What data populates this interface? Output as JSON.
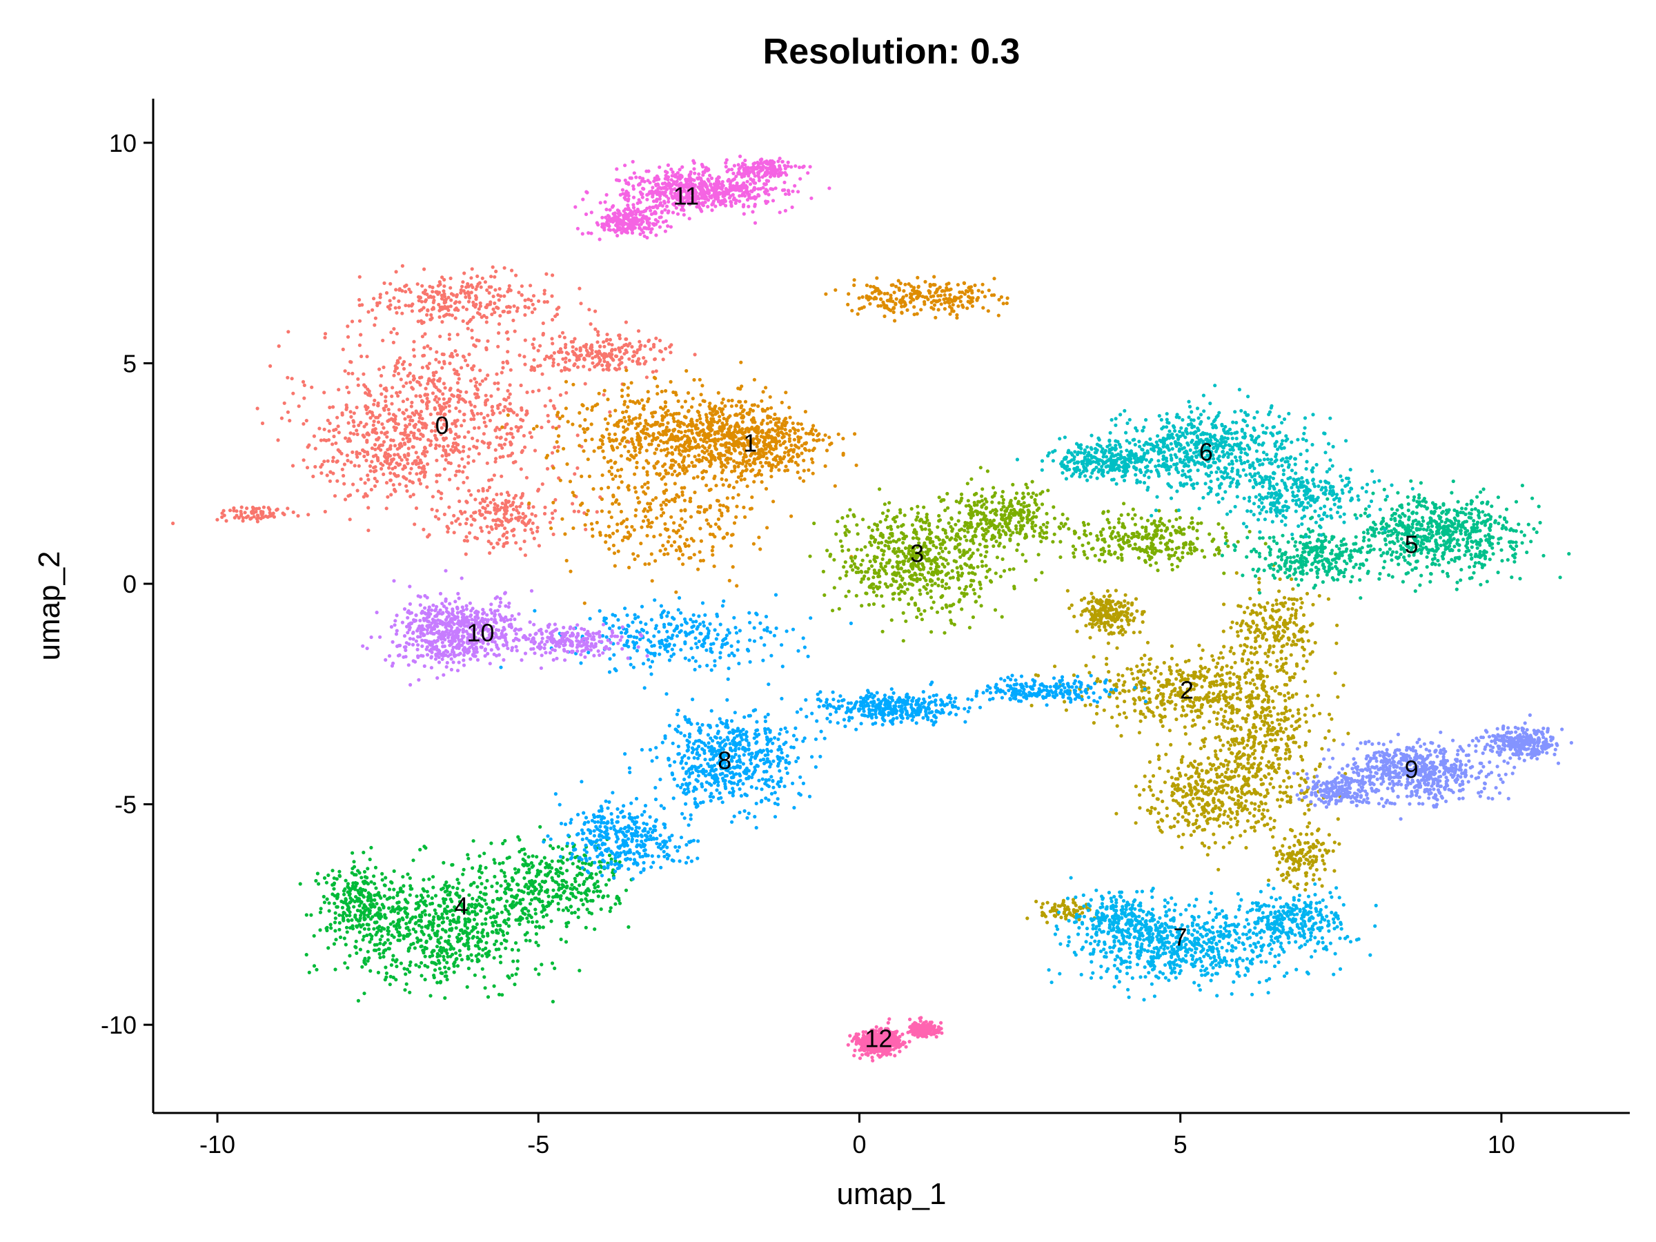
{
  "chart_data": {
    "type": "scatter",
    "title": "Resolution: 0.3",
    "xlabel": "umap_1",
    "ylabel": "umap_2",
    "xlim": [
      -11,
      12
    ],
    "ylim": [
      -12.0,
      11.0
    ],
    "x_ticks": [
      -10,
      -5,
      0,
      5,
      10
    ],
    "x_tick_labels": [
      "-10",
      "-5",
      "0",
      "5",
      "10"
    ],
    "y_ticks": [
      -10,
      -5,
      0,
      5,
      10
    ],
    "y_tick_labels": [
      "-10",
      "-5",
      "0",
      "5",
      "10"
    ],
    "grid": false,
    "legend": "none",
    "clusters": [
      {
        "label": "0",
        "color": "#F8766D",
        "label_pos": [
          -6.5,
          3.6
        ],
        "blobs": [
          [
            -6.5,
            4.0,
            1.8,
            1.6,
            0.9
          ],
          [
            -7.3,
            3.0,
            1.2,
            1.0,
            0.4
          ],
          [
            -6.2,
            6.4,
            1.3,
            0.6,
            0.4
          ],
          [
            -4.0,
            5.2,
            1.0,
            0.4,
            0.3
          ],
          [
            -9.4,
            1.6,
            0.6,
            0.15,
            0.1
          ],
          [
            -5.6,
            1.5,
            0.9,
            0.6,
            0.3
          ]
        ]
      },
      {
        "label": "1",
        "color": "#DE8C00",
        "label_pos": [
          -1.7,
          3.2
        ],
        "blobs": [
          [
            -1.8,
            3.2,
            1.2,
            0.8,
            0.9
          ],
          [
            -3.2,
            3.5,
            1.3,
            1.0,
            0.6
          ],
          [
            -3.0,
            1.5,
            1.4,
            1.2,
            0.4
          ],
          [
            1.0,
            6.5,
            1.0,
            0.35,
            0.35
          ]
        ]
      },
      {
        "label": "2",
        "color": "#B79F00",
        "label_pos": [
          5.1,
          -2.4
        ],
        "blobs": [
          [
            5.1,
            -2.4,
            1.5,
            0.7,
            0.6
          ],
          [
            6.3,
            -3.5,
            0.9,
            1.6,
            0.6
          ],
          [
            5.4,
            -4.8,
            0.9,
            0.9,
            0.5
          ],
          [
            3.9,
            -0.7,
            0.4,
            0.4,
            0.3
          ],
          [
            6.5,
            -1.0,
            0.6,
            0.9,
            0.3
          ],
          [
            6.9,
            -6.2,
            0.4,
            0.6,
            0.2
          ],
          [
            3.2,
            -7.4,
            0.4,
            0.2,
            0.1
          ]
        ]
      },
      {
        "label": "3",
        "color": "#7CAE00",
        "label_pos": [
          0.9,
          0.7
        ],
        "blobs": [
          [
            0.9,
            0.5,
            1.2,
            1.1,
            0.9
          ],
          [
            2.2,
            1.5,
            0.8,
            0.6,
            0.4
          ],
          [
            4.5,
            1.0,
            1.2,
            0.5,
            0.4
          ]
        ]
      },
      {
        "label": "4",
        "color": "#00BA38",
        "label_pos": [
          -6.2,
          -7.3
        ],
        "blobs": [
          [
            -6.6,
            -7.8,
            1.5,
            1.1,
            1.0
          ],
          [
            -4.8,
            -6.8,
            1.0,
            0.8,
            0.5
          ],
          [
            -7.8,
            -7.2,
            0.6,
            0.8,
            0.3
          ]
        ]
      },
      {
        "label": "5",
        "color": "#00C08B",
        "label_pos": [
          8.6,
          0.9
        ],
        "blobs": [
          [
            9.0,
            1.1,
            1.2,
            0.8,
            0.9
          ],
          [
            7.0,
            0.6,
            1.0,
            0.5,
            0.4
          ]
        ]
      },
      {
        "label": "6",
        "color": "#00BFC4",
        "label_pos": [
          5.4,
          3.0
        ],
        "blobs": [
          [
            5.4,
            3.0,
            1.4,
            0.9,
            0.9
          ],
          [
            3.8,
            2.8,
            0.8,
            0.4,
            0.4
          ],
          [
            6.8,
            2.0,
            1.0,
            0.6,
            0.4
          ]
        ]
      },
      {
        "label": "7",
        "color": "#00B4F0",
        "label_pos": [
          5.0,
          -8.0
        ],
        "blobs": [
          [
            5.0,
            -8.2,
            1.5,
            0.8,
            0.9
          ],
          [
            6.8,
            -7.7,
            0.8,
            0.6,
            0.4
          ],
          [
            4.0,
            -7.6,
            0.6,
            0.5,
            0.3
          ]
        ]
      },
      {
        "label": "8",
        "color": "#00A9FF",
        "label_pos": [
          -2.1,
          -4.0
        ],
        "blobs": [
          [
            -2.0,
            -4.0,
            1.0,
            1.0,
            0.8
          ],
          [
            -3.7,
            -5.8,
            0.9,
            0.7,
            0.5
          ],
          [
            0.5,
            -2.8,
            1.0,
            0.3,
            0.5
          ],
          [
            2.8,
            -2.4,
            1.0,
            0.25,
            0.3
          ],
          [
            -2.8,
            -1.2,
            1.5,
            0.6,
            0.4
          ]
        ]
      },
      {
        "label": "9",
        "color": "#8494FF",
        "label_pos": [
          8.6,
          -4.2
        ],
        "blobs": [
          [
            8.6,
            -4.3,
            1.1,
            0.6,
            0.9
          ],
          [
            10.3,
            -3.6,
            0.5,
            0.3,
            0.4
          ],
          [
            7.4,
            -4.7,
            0.4,
            0.3,
            0.2
          ]
        ]
      },
      {
        "label": "10",
        "color": "#C77CFF",
        "label_pos": [
          -5.9,
          -1.1
        ],
        "blobs": [
          [
            -6.3,
            -1.1,
            0.9,
            0.7,
            0.9
          ],
          [
            -4.6,
            -1.3,
            0.8,
            0.3,
            0.3
          ]
        ]
      },
      {
        "label": "11",
        "color": "#F564E3",
        "label_pos": [
          -2.7,
          8.8
        ],
        "blobs": [
          [
            -2.5,
            8.9,
            1.1,
            0.45,
            0.9
          ],
          [
            -3.6,
            8.2,
            0.5,
            0.3,
            0.3
          ],
          [
            -1.5,
            9.4,
            0.5,
            0.2,
            0.2
          ]
        ]
      },
      {
        "label": "12",
        "color": "#FF64B0",
        "label_pos": [
          0.3,
          -10.3
        ],
        "blobs": [
          [
            0.3,
            -10.4,
            0.3,
            0.25,
            0.7
          ],
          [
            1.0,
            -10.1,
            0.2,
            0.15,
            0.3
          ]
        ]
      }
    ]
  }
}
